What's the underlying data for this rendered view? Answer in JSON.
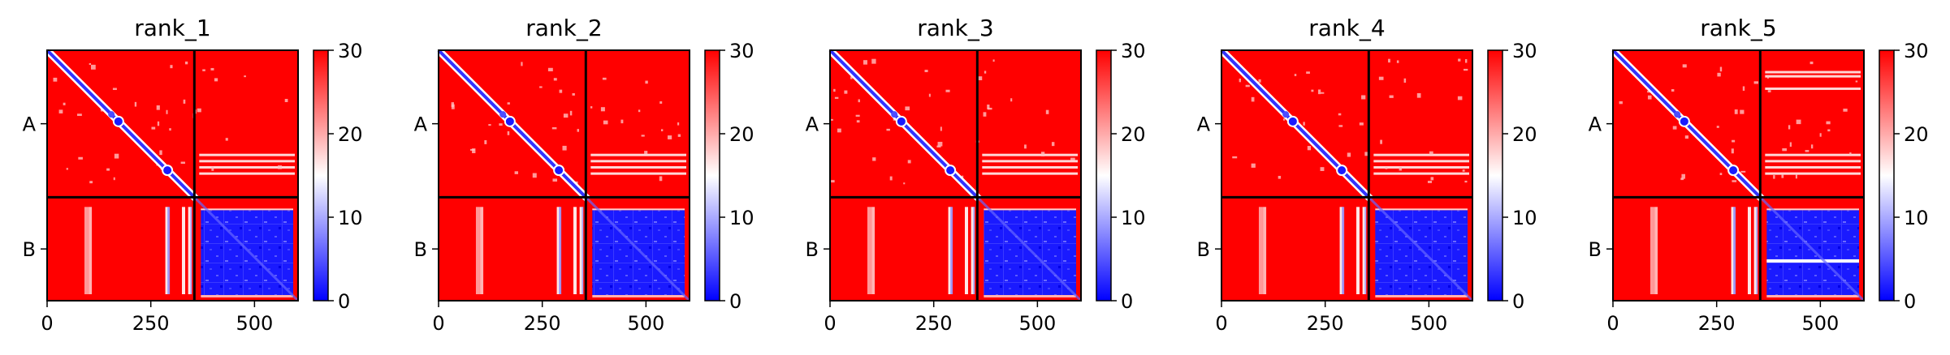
{
  "chart_data": {
    "type": "heatmap",
    "colormap": {
      "name": "bwr",
      "low": "#0000ff",
      "mid": "#ffffff",
      "high": "#ff0000",
      "vmin": 0,
      "vmax": 30
    },
    "colorbar_ticks": [
      "0",
      "10",
      "20",
      "30"
    ],
    "x_ticks": [
      {
        "value": 0,
        "label": "0"
      },
      {
        "value": 250,
        "label": "250"
      },
      {
        "value": 500,
        "label": "500"
      }
    ],
    "x_range": [
      0,
      605
    ],
    "y_range": [
      0,
      605
    ],
    "chain_boundary": 355,
    "chain_labels": [
      "A",
      "B"
    ],
    "panels": [
      {
        "title": "rank_1"
      },
      {
        "title": "rank_2"
      },
      {
        "title": "rank_3"
      },
      {
        "title": "rank_4"
      },
      {
        "title": "rank_5"
      }
    ]
  }
}
